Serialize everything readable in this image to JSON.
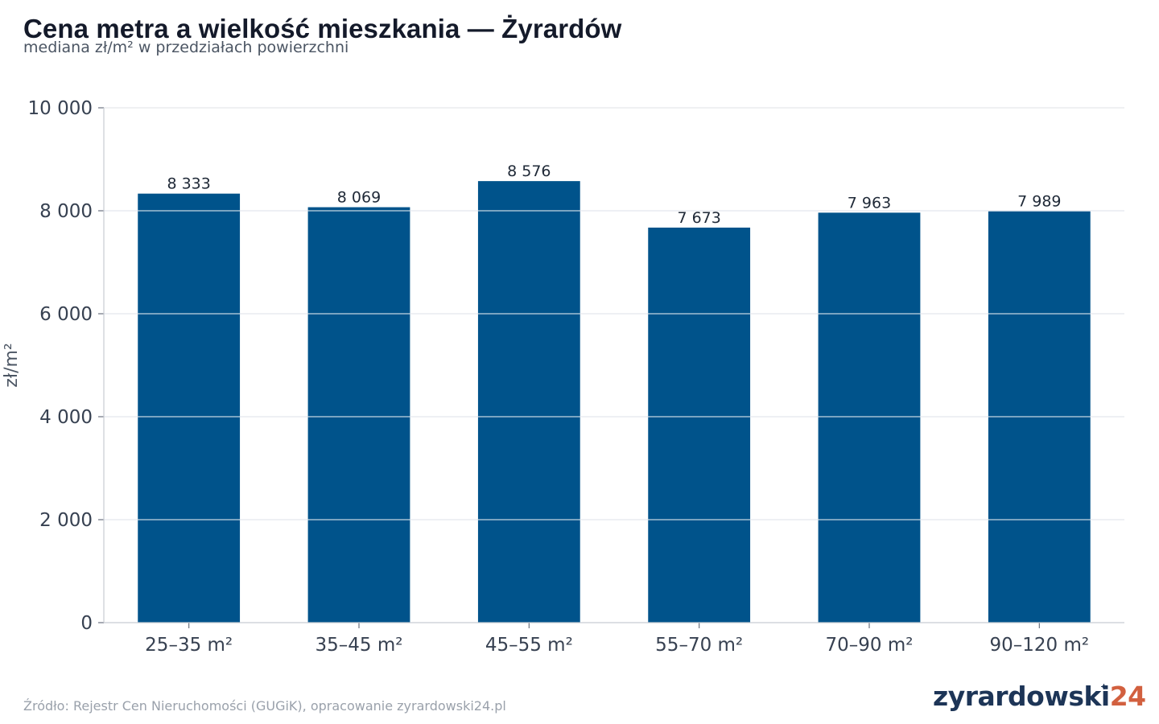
{
  "title": "Cena metra a wielkość mieszkania — Żyrardów",
  "subtitle": "mediana zł/m² w przedziałach powierzchni",
  "source": "Źródło: Rejestr Cen Nieruchomości (GUGiK), opracowanie zyrardowski24.pl",
  "brand": {
    "main": "zyrardowski",
    "accent": "24"
  },
  "colors": {
    "bar": "#00538b",
    "grid": "#e5e7eb",
    "axis": "#c8ccd2",
    "text": "#374151",
    "brand_accent": "#d2603f",
    "brand_main": "#1d3557"
  },
  "chart_data": {
    "type": "bar",
    "title": "Cena metra a wielkość mieszkania — Żyrardów",
    "subtitle": "mediana zł/m² w przedziałach powierzchni",
    "xlabel": "",
    "ylabel": "zł/m²",
    "categories": [
      "25–35 m²",
      "35–45 m²",
      "45–55 m²",
      "55–70 m²",
      "70–90 m²",
      "90–120 m²"
    ],
    "values": [
      8333,
      8069,
      8576,
      7673,
      7963,
      7989
    ],
    "value_labels": [
      "8 333",
      "8 069",
      "8 576",
      "7 673",
      "7 963",
      "7 989"
    ],
    "ylim": [
      0,
      10000
    ],
    "yticks": [
      0,
      2000,
      4000,
      6000,
      8000,
      10000
    ],
    "ytick_labels": [
      "0",
      "2 000",
      "4 000",
      "6 000",
      "8 000",
      "10 000"
    ],
    "grid": true,
    "legend": "none"
  }
}
